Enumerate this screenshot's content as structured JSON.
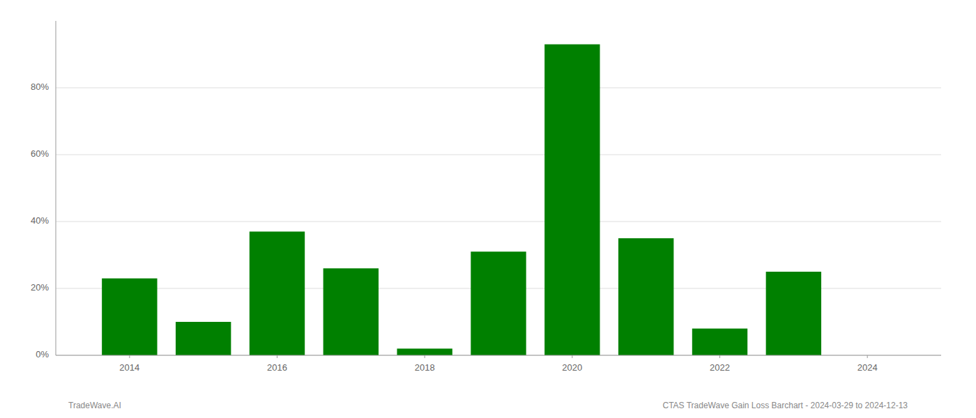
{
  "chart_data": {
    "type": "bar",
    "x": [
      2014,
      2015,
      2016,
      2017,
      2018,
      2019,
      2020,
      2021,
      2022,
      2023,
      2024
    ],
    "values": [
      0.23,
      0.1,
      0.37,
      0.26,
      0.02,
      0.31,
      0.93,
      0.35,
      0.08,
      0.25,
      0.0
    ],
    "color": "#008000",
    "xlim": [
      2013.0,
      2025.0
    ],
    "xticks": [
      2014,
      2016,
      2018,
      2020,
      2022,
      2024
    ],
    "ylim": [
      0,
      1.0
    ],
    "yticks": [
      {
        "value": 0.0,
        "label": "0%"
      },
      {
        "value": 0.2,
        "label": "20%"
      },
      {
        "value": 0.4,
        "label": "40%"
      },
      {
        "value": 0.6,
        "label": "60%"
      },
      {
        "value": 0.8,
        "label": "80%"
      }
    ],
    "grid": true,
    "annotations": [
      "TradeWave.AI",
      "CTAS TradeWave Gain Loss Barchart - 2024-03-29 to 2024-12-13"
    ]
  }
}
